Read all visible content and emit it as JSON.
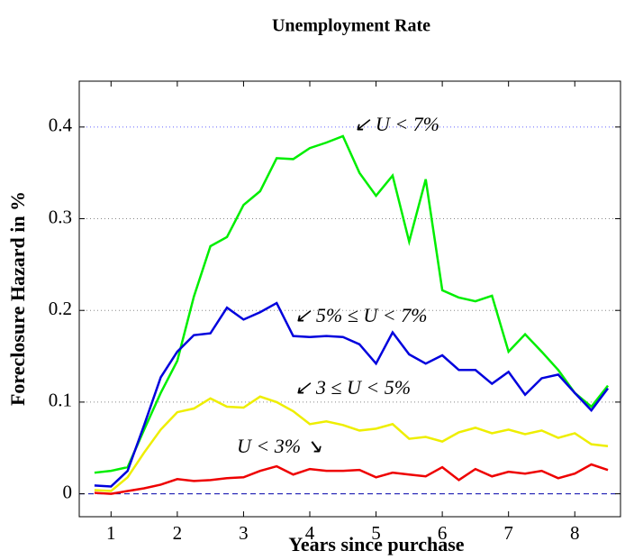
{
  "chart_data": {
    "type": "line",
    "title": "Unemployment Rate",
    "xlabel": "Years since purchase",
    "ylabel": "Foreclosure Hazard in %",
    "x": [
      0.75,
      1,
      1.25,
      1.5,
      1.75,
      2,
      2.25,
      2.5,
      2.75,
      3,
      3.25,
      3.5,
      3.75,
      4,
      4.25,
      4.5,
      4.75,
      5,
      5.25,
      5.5,
      5.75,
      6,
      6.25,
      6.5,
      6.75,
      7,
      7.25,
      7.5,
      7.75,
      8,
      8.25,
      8.5
    ],
    "series": [
      {
        "color": "#00ee00",
        "values": [
          0.023,
          0.025,
          0.029,
          0.07,
          0.11,
          0.145,
          0.215,
          0.27,
          0.28,
          0.315,
          0.33,
          0.366,
          0.365,
          0.377,
          0.383,
          0.39,
          0.35,
          0.325,
          0.347,
          0.275,
          0.343,
          0.222,
          0.214,
          0.21,
          0.216,
          0.155,
          0.174,
          0.155,
          0.135,
          0.11,
          0.095,
          0.118
        ]
      },
      {
        "color": "#0000dd",
        "values": [
          0.009,
          0.008,
          0.025,
          0.075,
          0.127,
          0.155,
          0.173,
          0.175,
          0.203,
          0.19,
          0.198,
          0.208,
          0.172,
          0.171,
          0.172,
          0.171,
          0.163,
          0.142,
          0.176,
          0.152,
          0.142,
          0.151,
          0.135,
          0.135,
          0.12,
          0.133,
          0.108,
          0.126,
          0.13,
          0.11,
          0.091,
          0.115
        ]
      },
      {
        "color": "#eeee00",
        "values": [
          0.004,
          0.003,
          0.018,
          0.045,
          0.07,
          0.089,
          0.093,
          0.104,
          0.095,
          0.094,
          0.106,
          0.1,
          0.09,
          0.076,
          0.079,
          0.075,
          0.069,
          0.071,
          0.076,
          0.06,
          0.062,
          0.057,
          0.067,
          0.072,
          0.066,
          0.07,
          0.065,
          0.069,
          0.061,
          0.066,
          0.054,
          0.052
        ]
      },
      {
        "color": "#ee0000",
        "values": [
          0.001,
          0,
          0.003,
          0.006,
          0.01,
          0.016,
          0.014,
          0.015,
          0.017,
          0.018,
          0.025,
          0.03,
          0.021,
          0.027,
          0.025,
          0.025,
          0.026,
          0.018,
          0.023,
          0.021,
          0.019,
          0.029,
          0.015,
          0.027,
          0.019,
          0.024,
          0.022,
          0.025,
          0.017,
          0.022,
          0.032,
          0.026
        ]
      }
    ],
    "annotations": [
      "↙ U < 7%",
      "↙ 5% ≤ U < 7%",
      "↙ 3 ≤ U < 5%",
      "U < 3% ↘"
    ],
    "xlim": [
      0.52,
      8.69
    ],
    "xticks": [
      1,
      2,
      3,
      4,
      5,
      6,
      7,
      8
    ],
    "ylim": [
      -0.025,
      0.45
    ],
    "yticks": [
      0,
      0.1,
      0.2,
      0.3,
      0.4
    ],
    "grid": true
  }
}
